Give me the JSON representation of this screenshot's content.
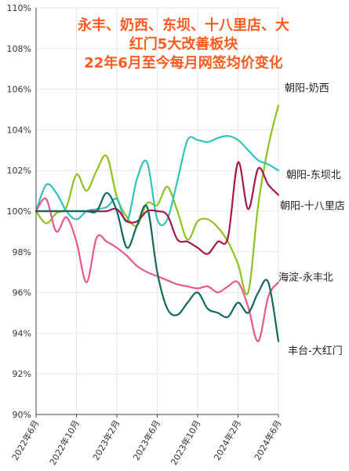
{
  "chart_data": {
    "type": "line",
    "title_lines": [
      "永丰、奶西、东坝、十八里店、大",
      "红门5大改善板块",
      "22年6月至今每月网签均价变化"
    ],
    "xlabel": "",
    "ylabel": "",
    "ylim": [
      90,
      110
    ],
    "y_ticks": [
      90,
      92,
      94,
      96,
      98,
      100,
      102,
      104,
      106,
      108,
      110
    ],
    "y_tick_labels": [
      "90%",
      "92%",
      "94%",
      "96%",
      "98%",
      "100%",
      "102%",
      "104%",
      "106%",
      "108%",
      "110%"
    ],
    "x_tick_labels": [
      "2022年6月",
      "2022年10月",
      "2023年2月",
      "2023年6月",
      "2023年10月",
      "2024年2月",
      "2024年6月"
    ],
    "x_tick_positions": [
      0,
      4,
      8,
      12,
      16,
      20,
      24
    ],
    "x": [
      0,
      1,
      2,
      3,
      4,
      5,
      6,
      7,
      8,
      9,
      10,
      11,
      12,
      13,
      14,
      15,
      16,
      17,
      18,
      19,
      20,
      21,
      22,
      23,
      24
    ],
    "grid": true,
    "series": [
      {
        "name": "朝阳-奶西",
        "color": "#8ec21f",
        "values": [
          100.0,
          99.4,
          99.9,
          100.2,
          101.8,
          101.0,
          102.0,
          102.7,
          100.7,
          99.7,
          99.3,
          100.4,
          100.3,
          101.2,
          100.0,
          98.6,
          99.5,
          99.6,
          99.2,
          98.5,
          97.4,
          96.0,
          100.3,
          103.2,
          105.2
        ]
      },
      {
        "name": "朝阳-东坝北",
        "color": "#2ec4bd",
        "values": [
          100.0,
          101.3,
          100.9,
          100.0,
          99.6,
          100.0,
          100.1,
          100.2,
          100.6,
          99.5,
          101.6,
          102.4,
          99.6,
          99.6,
          101.5,
          103.5,
          103.5,
          103.4,
          103.6,
          103.7,
          103.5,
          103.0,
          102.5,
          102.3,
          102.0
        ]
      },
      {
        "name": "朝阳-十八里店",
        "color": "#a8164e",
        "values": [
          100.0,
          100.0,
          100.0,
          100.0,
          100.0,
          100.0,
          100.0,
          100.0,
          100.1,
          99.5,
          99.5,
          100.0,
          100.0,
          99.8,
          98.6,
          98.5,
          98.2,
          97.9,
          98.5,
          98.7,
          102.4,
          100.1,
          102.1,
          101.3,
          100.8
        ]
      },
      {
        "name": "海淀-永丰北",
        "color": "#e8578d",
        "values": [
          100.0,
          100.6,
          99.0,
          99.7,
          98.5,
          96.5,
          98.7,
          98.5,
          98.2,
          97.8,
          97.3,
          97.0,
          96.8,
          96.6,
          96.4,
          96.3,
          96.2,
          96.3,
          96.0,
          96.3,
          96.5,
          95.3,
          93.6,
          95.8,
          96.5
        ]
      },
      {
        "name": "丰台-大红门",
        "color": "#12695f",
        "values": [
          100.0,
          100.0,
          100.0,
          100.0,
          100.0,
          100.0,
          100.0,
          100.9,
          100.0,
          98.2,
          99.3,
          100.2,
          97.0,
          95.2,
          94.9,
          95.5,
          96.0,
          95.2,
          95.0,
          94.8,
          95.5,
          95.0,
          96.0,
          96.5,
          93.6
        ]
      }
    ]
  }
}
